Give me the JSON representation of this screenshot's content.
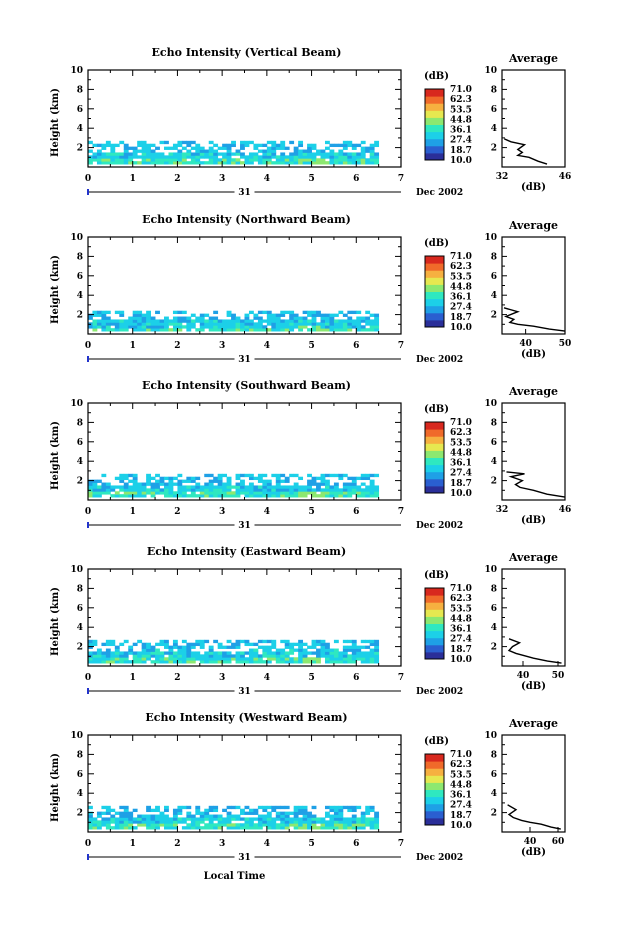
{
  "figure": {
    "xlabel": "Local Time",
    "date_day": "31",
    "date_month": "Dec 2002",
    "ylabel": "Height (km)",
    "avg_title": "Average",
    "avg_xlabel": "(dB)",
    "colorbar_unit": "(dB)"
  },
  "colorbar_ticks": [
    "71.0",
    "62.3",
    "53.5",
    "44.8",
    "36.1",
    "27.4",
    "18.7",
    "10.0"
  ],
  "colorscale": [
    "#2b2f99",
    "#2a5fd0",
    "#1fa0e6",
    "#1cd0e8",
    "#2fe8c0",
    "#8ce870",
    "#e6e850",
    "#f6b040",
    "#f06a2a",
    "#d8281e"
  ],
  "chart_data": [
    {
      "type": "heatmap",
      "title": "Echo Intensity (Vertical Beam)",
      "xlabel": "Local Time",
      "ylabel": "Height (km)",
      "xlim": [
        0,
        7
      ],
      "ylim": [
        0,
        10
      ],
      "x_ticks": [
        0,
        1,
        2,
        3,
        4,
        5,
        6,
        7
      ],
      "y_ticks": [
        2,
        4,
        6,
        8,
        10
      ],
      "colorbar_range": [
        10.0,
        71.0
      ],
      "echo_top_km": 2.5,
      "data_end_time": 6.5,
      "average": {
        "xlim": [
          32,
          46
        ],
        "x_ticks": [
          32,
          46
        ],
        "profile": [
          [
            42,
            0.3
          ],
          [
            40,
            0.6
          ],
          [
            38,
            1.0
          ],
          [
            35.5,
            1.2
          ],
          [
            36.5,
            1.5
          ],
          [
            35.5,
            1.8
          ],
          [
            37,
            2.3
          ],
          [
            34,
            2.6
          ],
          [
            32.5,
            2.9
          ]
        ]
      }
    },
    {
      "type": "heatmap",
      "title": "Echo Intensity (Northward Beam)",
      "xlabel": "Local Time",
      "ylabel": "Height (km)",
      "xlim": [
        0,
        7
      ],
      "ylim": [
        0,
        10
      ],
      "x_ticks": [
        0,
        1,
        2,
        3,
        4,
        5,
        6,
        7
      ],
      "y_ticks": [
        2,
        4,
        6,
        8,
        10
      ],
      "colorbar_range": [
        10.0,
        71.0
      ],
      "echo_top_km": 2.3,
      "data_end_time": 6.5,
      "average": {
        "xlim": [
          34,
          50
        ],
        "x_ticks": [
          40,
          50
        ],
        "profile": [
          [
            50,
            0.3
          ],
          [
            46,
            0.5
          ],
          [
            42,
            0.8
          ],
          [
            38,
            1.0
          ],
          [
            36,
            1.2
          ],
          [
            37,
            1.5
          ],
          [
            35,
            1.8
          ],
          [
            38,
            2.3
          ],
          [
            34.5,
            2.7
          ]
        ]
      }
    },
    {
      "type": "heatmap",
      "title": "Echo Intensity (Southward Beam)",
      "xlabel": "Local Time",
      "ylabel": "Height (km)",
      "xlim": [
        0,
        7
      ],
      "ylim": [
        0,
        10
      ],
      "x_ticks": [
        0,
        1,
        2,
        3,
        4,
        5,
        6,
        7
      ],
      "y_ticks": [
        2,
        4,
        6,
        8,
        10
      ],
      "colorbar_range": [
        10.0,
        71.0
      ],
      "echo_top_km": 2.5,
      "data_end_time": 6.5,
      "average": {
        "xlim": [
          32,
          46
        ],
        "x_ticks": [
          32,
          46
        ],
        "profile": [
          [
            46,
            0.3
          ],
          [
            42,
            0.6
          ],
          [
            39,
            1.0
          ],
          [
            36,
            1.3
          ],
          [
            35,
            1.6
          ],
          [
            36.5,
            2.0
          ],
          [
            34,
            2.4
          ],
          [
            37,
            2.7
          ],
          [
            33,
            2.9
          ]
        ]
      }
    },
    {
      "type": "heatmap",
      "title": "Echo Intensity (Eastward Beam)",
      "xlabel": "Local Time",
      "ylabel": "Height (km)",
      "xlim": [
        0,
        7
      ],
      "ylim": [
        0,
        10
      ],
      "x_ticks": [
        0,
        1,
        2,
        3,
        4,
        5,
        6,
        7
      ],
      "y_ticks": [
        2,
        4,
        6,
        8,
        10
      ],
      "colorbar_range": [
        10.0,
        71.0
      ],
      "echo_top_km": 2.6,
      "data_end_time": 6.5,
      "average": {
        "xlim": [
          34,
          52
        ],
        "x_ticks": [
          40,
          50
        ],
        "profile": [
          [
            51,
            0.3
          ],
          [
            47,
            0.5
          ],
          [
            43,
            0.8
          ],
          [
            40,
            1.1
          ],
          [
            38,
            1.3
          ],
          [
            36,
            1.6
          ],
          [
            37,
            2.0
          ],
          [
            39,
            2.4
          ],
          [
            36,
            2.8
          ]
        ]
      }
    },
    {
      "type": "heatmap",
      "title": "Echo Intensity (Westward Beam)",
      "xlabel": "Local Time",
      "ylabel": "Height (km)",
      "xlim": [
        0,
        7
      ],
      "ylim": [
        0,
        10
      ],
      "x_ticks": [
        0,
        1,
        2,
        3,
        4,
        5,
        6,
        7
      ],
      "y_ticks": [
        2,
        4,
        6,
        8,
        10
      ],
      "colorbar_range": [
        10.0,
        71.0
      ],
      "echo_top_km": 2.5,
      "data_end_time": 6.5,
      "average": {
        "xlim": [
          20,
          65
        ],
        "x_ticks": [
          40,
          60
        ],
        "profile": [
          [
            62,
            0.3
          ],
          [
            55,
            0.5
          ],
          [
            48,
            0.8
          ],
          [
            40,
            1.0
          ],
          [
            34,
            1.2
          ],
          [
            28,
            1.5
          ],
          [
            25,
            1.8
          ],
          [
            30,
            2.3
          ],
          [
            24,
            2.8
          ]
        ]
      }
    }
  ]
}
